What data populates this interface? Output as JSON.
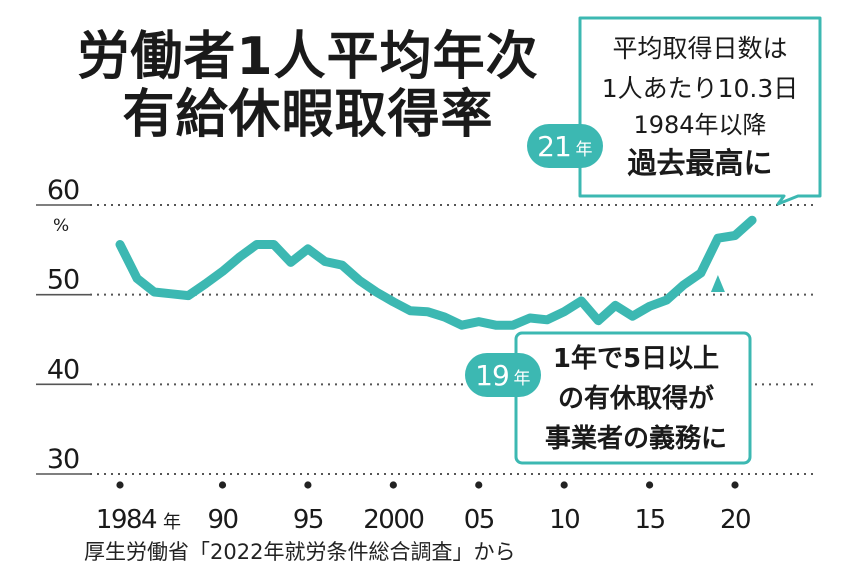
{
  "title": {
    "line1": "労働者1人平均年次",
    "line2": "有給休暇取得率"
  },
  "source": "厚生労働省「2022年就労条件総合調査」から",
  "colors": {
    "line": "#3cb8b2",
    "grid": "#555555",
    "text": "#1a1a1a"
  },
  "annotations": {
    "top": {
      "lines": [
        "平均取得日数は",
        "1人あたり10.3日",
        "1984年以降",
        "過去最高に"
      ],
      "tag_num": "21",
      "tag_unit": "年"
    },
    "bottom": {
      "lines": [
        "1年で5日以上",
        "の有休取得が",
        "事業者の義務に"
      ],
      "tag_num": "19",
      "tag_unit": "年"
    }
  },
  "chart_data": {
    "type": "line",
    "title": "労働者1人平均年次有給休暇取得率",
    "ylabel": "%",
    "ylim": [
      30,
      60
    ],
    "yticks": [
      "60",
      "50",
      "40",
      "30"
    ],
    "xticks": [
      {
        "year": 1984,
        "label": "1984",
        "unit": "年"
      },
      {
        "year": 1990,
        "label": "90"
      },
      {
        "year": 1995,
        "label": "95"
      },
      {
        "year": 2000,
        "label": "2000"
      },
      {
        "year": 2005,
        "label": "05"
      },
      {
        "year": 2010,
        "label": "10"
      },
      {
        "year": 2015,
        "label": "15"
      },
      {
        "year": 2020,
        "label": "20"
      }
    ],
    "grid": true,
    "x": [
      1984,
      1985,
      1986,
      1987,
      1988,
      1989,
      1990,
      1991,
      1992,
      1993,
      1994,
      1995,
      1996,
      1997,
      1998,
      1999,
      2000,
      2001,
      2002,
      2003,
      2004,
      2005,
      2006,
      2007,
      2008,
      2009,
      2010,
      2011,
      2012,
      2013,
      2014,
      2015,
      2016,
      2017,
      2018,
      2019,
      2020,
      2021
    ],
    "series": [
      {
        "values": [
          55.6,
          51.8,
          50.3,
          50.1,
          49.9,
          51.2,
          52.6,
          54.2,
          55.6,
          55.6,
          53.6,
          55.1,
          53.7,
          53.3,
          51.6,
          50.3,
          49.2,
          48.2,
          48.1,
          47.5,
          46.6,
          47.0,
          46.6,
          46.6,
          47.4,
          47.2,
          48.1,
          49.3,
          47.1,
          48.8,
          47.6,
          48.7,
          49.4,
          51.1,
          52.4,
          56.3,
          56.6,
          58.3
        ]
      }
    ]
  }
}
